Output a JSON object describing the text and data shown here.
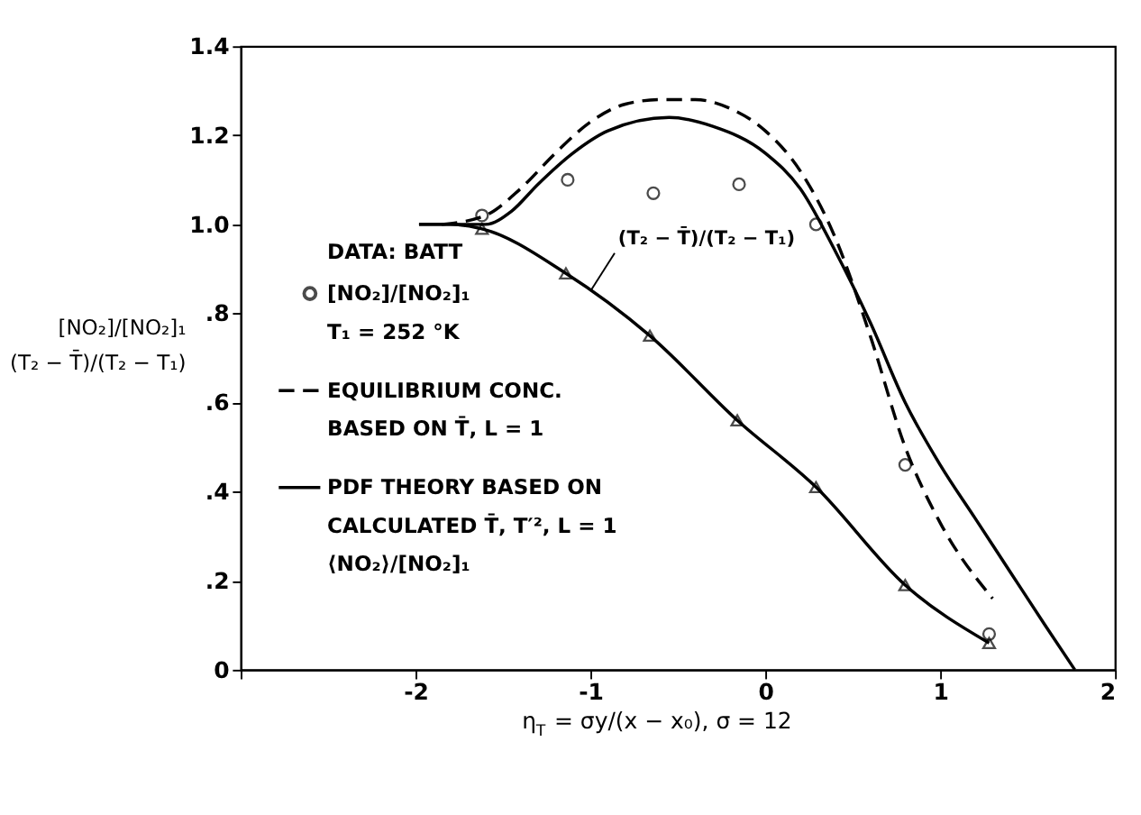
{
  "chart_data": {
    "type": "line",
    "xlabel": "η$_{T}$ = σy/(x − x₀), σ = 12",
    "ylabel": "[NO₂]/[NO₂]₁\n\n(T₂ − T̄)/(T₂ − T₁)",
    "legend_title": "DATA: BATT",
    "legend": "left",
    "grid": false,
    "xlim": [
      -3,
      2
    ],
    "xticks": [
      {
        "value": -3,
        "label": null
      },
      -2,
      -1,
      0,
      1,
      2
    ],
    "ylim": [
      0,
      1.4
    ],
    "yticks": [
      {
        "value": 0,
        "label": "0"
      },
      {
        "value": 0.2,
        "label": ".2"
      },
      {
        "value": 0.4,
        "label": ".4"
      },
      {
        "value": 0.6,
        "label": ".6"
      },
      {
        "value": 0.8,
        "label": ".8"
      },
      {
        "value": 1.0,
        "label": "1.0"
      },
      1.2,
      1.4
    ],
    "annotations": [
      "T₁ = 252 °K",
      {
        "text": "(T₂ − T̄)/(T₂ − T₁)",
        "x": -1.0,
        "y": 0.85
      }
    ],
    "series": [
      {
        "name": "[NO₂]/[NO₂]₁",
        "type": "scatter",
        "marker": "circle",
        "color": "#000000",
        "x": [
          -1.62,
          -1.13,
          -0.64,
          -0.15,
          0.29,
          0.8,
          1.28
        ],
        "values": [
          1.02,
          1.1,
          1.07,
          1.09,
          1.0,
          0.46,
          0.08
        ]
      },
      {
        "name": "EQUILIBRIUM CONC.\nBASED ON T̄, L = 1",
        "line_style": "dashed",
        "color": "#000000",
        "x": [
          -1.85,
          -1.6,
          -1.4,
          -1.2,
          -1.0,
          -0.8,
          -0.6,
          -0.4,
          -0.2,
          0.0,
          0.2,
          0.4,
          0.6,
          0.8,
          1.0,
          1.3
        ],
        "values": [
          1.0,
          1.02,
          1.08,
          1.16,
          1.23,
          1.27,
          1.28,
          1.28,
          1.26,
          1.21,
          1.12,
          0.97,
          0.75,
          0.5,
          0.33,
          0.16
        ]
      },
      {
        "name": "PDF THEORY BASED ON\nCALCULATED T̄, T′², L = 1\n⟨NO₂⟩/[NO₂]₁",
        "line_style": "solid",
        "color": "#000000",
        "x": [
          -1.98,
          -1.6,
          -1.45,
          -1.3,
          -1.1,
          -0.9,
          -0.55,
          -0.3,
          0.0,
          0.2,
          0.4,
          0.6,
          0.8,
          1.0,
          1.2,
          1.4,
          1.6,
          1.77
        ],
        "values": [
          1.0,
          1.0,
          1.03,
          1.09,
          1.16,
          1.21,
          1.24,
          1.22,
          1.16,
          1.08,
          0.94,
          0.78,
          0.6,
          0.46,
          0.34,
          0.22,
          0.1,
          0.0
        ]
      },
      {
        "type": "scatter",
        "marker": "triangle",
        "color": "#000000",
        "x": [
          -1.62,
          -1.14,
          -0.66,
          -0.16,
          0.29,
          0.8,
          1.28
        ],
        "values": [
          0.99,
          0.89,
          0.75,
          0.56,
          0.41,
          0.19,
          0.06
        ]
      },
      {
        "line_style": "solid",
        "color": "#000000",
        "x": [
          -1.98,
          -1.8,
          -1.62,
          -1.14,
          -0.66,
          -0.16,
          0.29,
          0.8,
          1.28
        ],
        "values": [
          1.0,
          1.0,
          0.99,
          0.89,
          0.75,
          0.56,
          0.41,
          0.19,
          0.06
        ]
      }
    ]
  }
}
